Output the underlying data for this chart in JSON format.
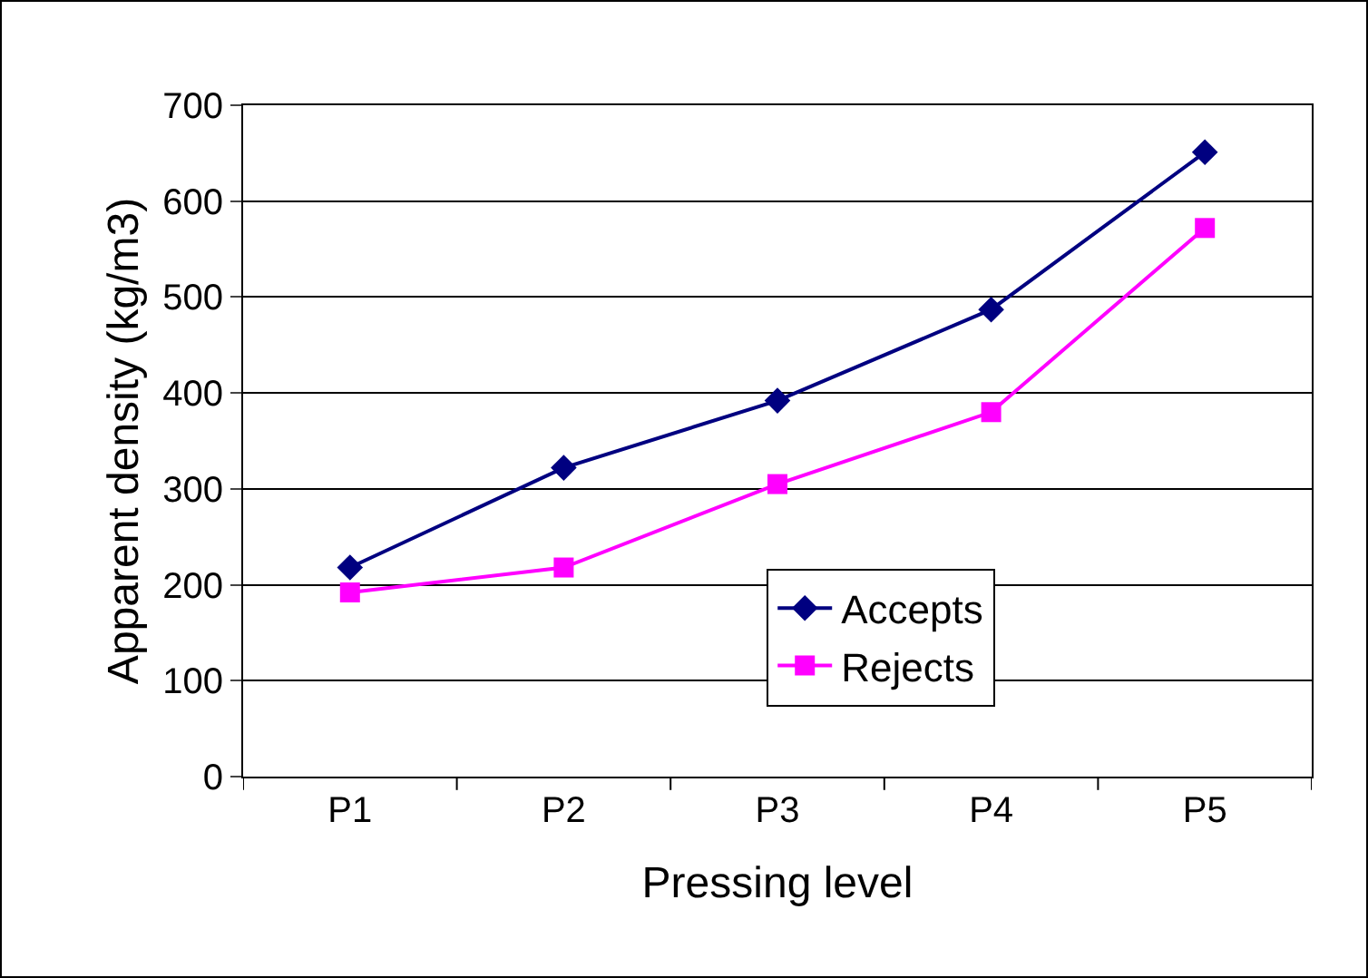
{
  "chart_data": {
    "type": "line",
    "xlabel": "Pressing level",
    "ylabel": "Apparent density (kg/m3)",
    "categories": [
      "P1",
      "P2",
      "P3",
      "P4",
      "P5"
    ],
    "series": [
      {
        "name": "Accepts",
        "color": "#000080",
        "marker": "diamond",
        "values": [
          218,
          322,
          392,
          487,
          651
        ]
      },
      {
        "name": "Rejects",
        "color": "#ff00ff",
        "marker": "square",
        "values": [
          192,
          218,
          305,
          380,
          572
        ]
      }
    ],
    "ylim": [
      0,
      700
    ],
    "yticks": [
      0,
      100,
      200,
      300,
      400,
      500,
      600,
      700
    ],
    "grid": "y",
    "legend": "bottom right",
    "line_style": "solid"
  }
}
